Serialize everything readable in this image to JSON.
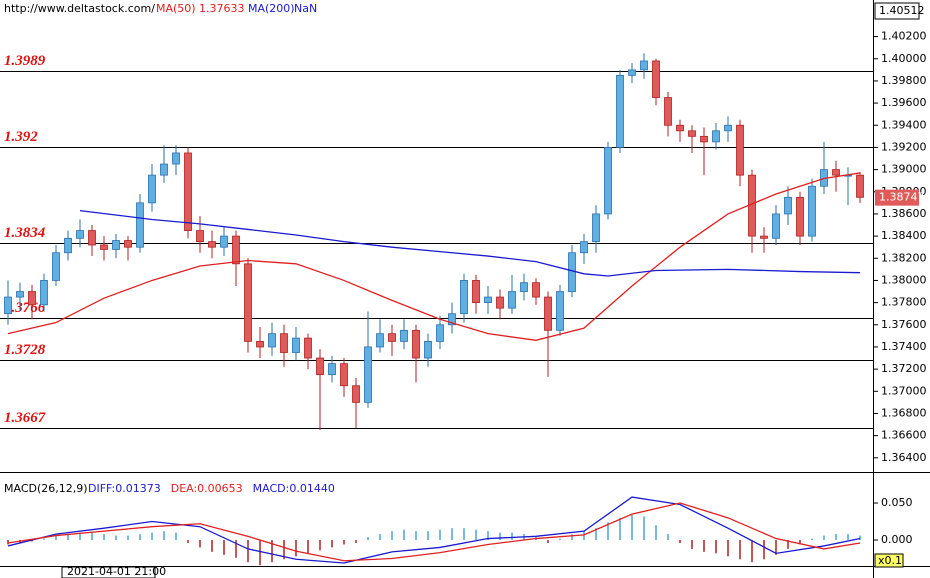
{
  "chart_data": {
    "type": "candlestick",
    "source": "http://www.deltastock.com/",
    "ma_labels": [
      {
        "name": "MA(50)",
        "value": 1.37633
      },
      {
        "name": "MA(200)",
        "value": "NaN"
      }
    ],
    "top_price": 1.40512,
    "last_price": 1.38747,
    "date_label": "2021-04-01 21:00",
    "up_color": "#5fb0e0",
    "up_edge": "#2a6fb0",
    "down_color": "#e05a5a",
    "down_edge": "#b02020",
    "ylim": [
      1.3629,
      1.4053
    ],
    "yticks": [
      {
        "value": 1.364,
        "label": "1.36400"
      },
      {
        "value": 1.366,
        "label": "1.36600"
      },
      {
        "value": 1.368,
        "label": "1.36800"
      },
      {
        "value": 1.37,
        "label": "1.37000"
      },
      {
        "value": 1.372,
        "label": "1.37200"
      },
      {
        "value": 1.374,
        "label": "1.37400"
      },
      {
        "value": 1.376,
        "label": "1.37600"
      },
      {
        "value": 1.378,
        "label": "1.37800"
      },
      {
        "value": 1.38,
        "label": "1.38000"
      },
      {
        "value": 1.382,
        "label": "1.38200"
      },
      {
        "value": 1.384,
        "label": "1.38400"
      },
      {
        "value": 1.386,
        "label": "1.38600"
      },
      {
        "value": 1.388,
        "label": "1.38800"
      },
      {
        "value": 1.39,
        "label": "1.39000"
      },
      {
        "value": 1.392,
        "label": "1.39200"
      },
      {
        "value": 1.394,
        "label": "1.39400"
      },
      {
        "value": 1.396,
        "label": "1.39600"
      },
      {
        "value": 1.398,
        "label": "1.39800"
      },
      {
        "value": 1.4,
        "label": "1.40000"
      },
      {
        "value": 1.402,
        "label": "1.40200"
      }
    ],
    "levels": [
      1.3989,
      1.392,
      1.3834,
      1.3766,
      1.3728,
      1.3667
    ],
    "level_color": "#e01010",
    "open": [
      1.377,
      1.3785,
      1.379,
      1.3778,
      1.38,
      1.3825,
      1.3838,
      1.3845,
      1.3832,
      1.3828,
      1.3836,
      1.383,
      1.387,
      1.3895,
      1.3905,
      1.3915,
      1.3845,
      1.3835,
      1.383,
      1.384,
      1.3815,
      1.3745,
      1.374,
      1.3752,
      1.3735,
      1.3748,
      1.373,
      1.3715,
      1.3725,
      1.3705,
      1.369,
      1.374,
      1.3752,
      1.3745,
      1.3755,
      1.373,
      1.3745,
      1.376,
      1.377,
      1.38,
      1.378,
      1.3785,
      1.3775,
      1.379,
      1.3798,
      1.3785,
      1.3755,
      1.379,
      1.3825,
      1.3835,
      1.386,
      1.392,
      1.3985,
      1.399,
      1.3998,
      1.3965,
      1.394,
      1.3935,
      1.393,
      1.3925,
      1.3935,
      1.394,
      1.3895,
      1.384,
      1.3838,
      1.386,
      1.3875,
      1.384,
      1.3885,
      1.39,
      1.3895,
      1.3895
    ],
    "high": [
      1.38,
      1.3798,
      1.3796,
      1.3806,
      1.3832,
      1.3845,
      1.3855,
      1.385,
      1.384,
      1.3842,
      1.384,
      1.3878,
      1.3905,
      1.3922,
      1.3922,
      1.392,
      1.3858,
      1.3845,
      1.3848,
      1.3845,
      1.382,
      1.3758,
      1.3762,
      1.376,
      1.3758,
      1.3752,
      1.3738,
      1.3732,
      1.373,
      1.3712,
      1.3772,
      1.3765,
      1.376,
      1.3765,
      1.376,
      1.3752,
      1.3768,
      1.378,
      1.3806,
      1.3805,
      1.3795,
      1.3792,
      1.3805,
      1.3806,
      1.3802,
      1.379,
      1.3796,
      1.3832,
      1.3842,
      1.3868,
      1.3925,
      1.399,
      1.3996,
      1.4005,
      1.4,
      1.397,
      1.3945,
      1.394,
      1.3938,
      1.3942,
      1.3948,
      1.3945,
      1.39,
      1.3848,
      1.3868,
      1.3885,
      1.388,
      1.3892,
      1.3925,
      1.3908,
      1.3902,
      1.3898
    ],
    "low": [
      1.376,
      1.3772,
      1.3765,
      1.3772,
      1.3795,
      1.3818,
      1.383,
      1.3822,
      1.3818,
      1.382,
      1.3818,
      1.3825,
      1.3862,
      1.3888,
      1.3895,
      1.3838,
      1.3825,
      1.382,
      1.3822,
      1.3795,
      1.3735,
      1.373,
      1.3732,
      1.3722,
      1.3728,
      1.372,
      1.3665,
      1.3708,
      1.3695,
      1.3667,
      1.3685,
      1.3735,
      1.3732,
      1.3738,
      1.3708,
      1.3722,
      1.3738,
      1.3752,
      1.3762,
      1.377,
      1.377,
      1.3765,
      1.377,
      1.3782,
      1.3778,
      1.3713,
      1.375,
      1.3785,
      1.3815,
      1.3825,
      1.3855,
      1.3915,
      1.3978,
      1.3982,
      1.3958,
      1.393,
      1.3925,
      1.3915,
      1.3895,
      1.3918,
      1.3925,
      1.3885,
      1.3825,
      1.3825,
      1.3832,
      1.385,
      1.3832,
      1.3835,
      1.3878,
      1.388,
      1.3868,
      1.387
    ],
    "close": [
      1.3785,
      1.379,
      1.3778,
      1.38,
      1.3825,
      1.3838,
      1.3845,
      1.3832,
      1.3828,
      1.3836,
      1.383,
      1.387,
      1.3895,
      1.3905,
      1.3915,
      1.3845,
      1.3835,
      1.383,
      1.384,
      1.3815,
      1.3745,
      1.374,
      1.3752,
      1.3735,
      1.3748,
      1.373,
      1.3715,
      1.3725,
      1.3705,
      1.369,
      1.374,
      1.3752,
      1.3745,
      1.3755,
      1.373,
      1.3745,
      1.376,
      1.377,
      1.38,
      1.378,
      1.3785,
      1.3775,
      1.379,
      1.3798,
      1.3785,
      1.3755,
      1.379,
      1.3825,
      1.3835,
      1.386,
      1.392,
      1.3985,
      1.399,
      1.3998,
      1.3965,
      1.394,
      1.3935,
      1.393,
      1.3925,
      1.3935,
      1.394,
      1.3895,
      1.384,
      1.3838,
      1.386,
      1.3875,
      1.384,
      1.3885,
      1.39,
      1.3895,
      1.3895,
      1.3875
    ],
    "series": [
      {
        "color": "#e02020",
        "x": [
          0,
          4,
          8,
          12,
          16,
          20,
          24,
          28,
          32,
          36,
          40,
          44,
          48,
          52,
          56,
          60,
          64,
          68,
          71
        ],
        "values": [
          1.3752,
          1.3762,
          1.3784,
          1.38,
          1.3813,
          1.3818,
          1.3815,
          1.38,
          1.3782,
          1.3765,
          1.3752,
          1.3746,
          1.3757,
          1.3795,
          1.383,
          1.386,
          1.3878,
          1.3892,
          1.3897
        ]
      },
      {
        "color": "#1a1ad0",
        "x": [
          6,
          12,
          16,
          20,
          24,
          28,
          32,
          36,
          40,
          44,
          48,
          50,
          54,
          60,
          66,
          71
        ],
        "values": [
          1.3863,
          1.3855,
          1.3851,
          1.3846,
          1.3841,
          1.3835,
          1.383,
          1.3826,
          1.3822,
          1.3817,
          1.3806,
          1.3804,
          1.3809,
          1.381,
          1.3808,
          1.3807
        ]
      }
    ],
    "macd": {
      "title": "MACD(26,12,9)",
      "labels": [
        {
          "text": "DIFF:0.01373",
          "color": "#1a1ad0"
        },
        {
          "text": "DEA:0.00653",
          "color": "#e02020"
        },
        {
          "text": "MACD:0.01440",
          "color": "#1a1ad0"
        }
      ],
      "ylim": [
        -0.0351,
        0.0838
      ],
      "yticks": [
        {
          "value": 0.05,
          "label": "0.050"
        },
        {
          "value": 0,
          "label": "0.000"
        }
      ],
      "hist_up": "#4aa3d8",
      "hist_down": "#b02020",
      "hist": [
        -0.006,
        -0.004,
        -0.002,
        0.002,
        0.006,
        0.008,
        0.01,
        0.01,
        0.008,
        0.006,
        0.006,
        0.008,
        0.01,
        0.012,
        0.01,
        -0.004,
        -0.01,
        -0.016,
        -0.02,
        -0.024,
        -0.03,
        -0.034,
        -0.03,
        -0.026,
        -0.022,
        -0.018,
        -0.014,
        -0.01,
        -0.006,
        -0.004,
        0.004,
        0.008,
        0.012,
        0.014,
        0.012,
        0.012,
        0.014,
        0.016,
        0.016,
        0.014,
        0.012,
        0.01,
        0.01,
        0.008,
        0.004,
        -0.004,
        0.002,
        0.008,
        0.012,
        0.016,
        0.024,
        0.03,
        0.034,
        0.032,
        0.02,
        0.008,
        -0.004,
        -0.012,
        -0.016,
        -0.018,
        -0.022,
        -0.026,
        -0.03,
        -0.026,
        -0.02,
        -0.012,
        -0.006,
        0.002,
        0.006,
        0.008,
        0.008,
        0.006
      ],
      "series": [
        {
          "color": "#1a1ad0",
          "x": [
            0,
            4,
            8,
            12,
            16,
            20,
            24,
            28,
            32,
            36,
            40,
            44,
            48,
            52,
            56,
            60,
            64,
            68,
            71
          ],
          "values": [
            -0.008,
            0.008,
            0.016,
            0.025,
            0.018,
            -0.012,
            -0.026,
            -0.031,
            -0.016,
            -0.01,
            0.002,
            0.005,
            0.012,
            0.058,
            0.048,
            0.016,
            -0.018,
            -0.008,
            0.002
          ]
        },
        {
          "color": "#e02020",
          "x": [
            0,
            4,
            8,
            12,
            16,
            20,
            24,
            28,
            32,
            36,
            40,
            44,
            48,
            52,
            56,
            60,
            64,
            68,
            71
          ],
          "values": [
            -0.004,
            0.006,
            0.012,
            0.018,
            0.022,
            0.005,
            -0.015,
            -0.028,
            -0.025,
            -0.017,
            -0.006,
            0.002,
            0.007,
            0.035,
            0.05,
            0.03,
            0.002,
            -0.012,
            -0.004
          ]
        }
      ],
      "scale_label": "x0.1"
    }
  }
}
